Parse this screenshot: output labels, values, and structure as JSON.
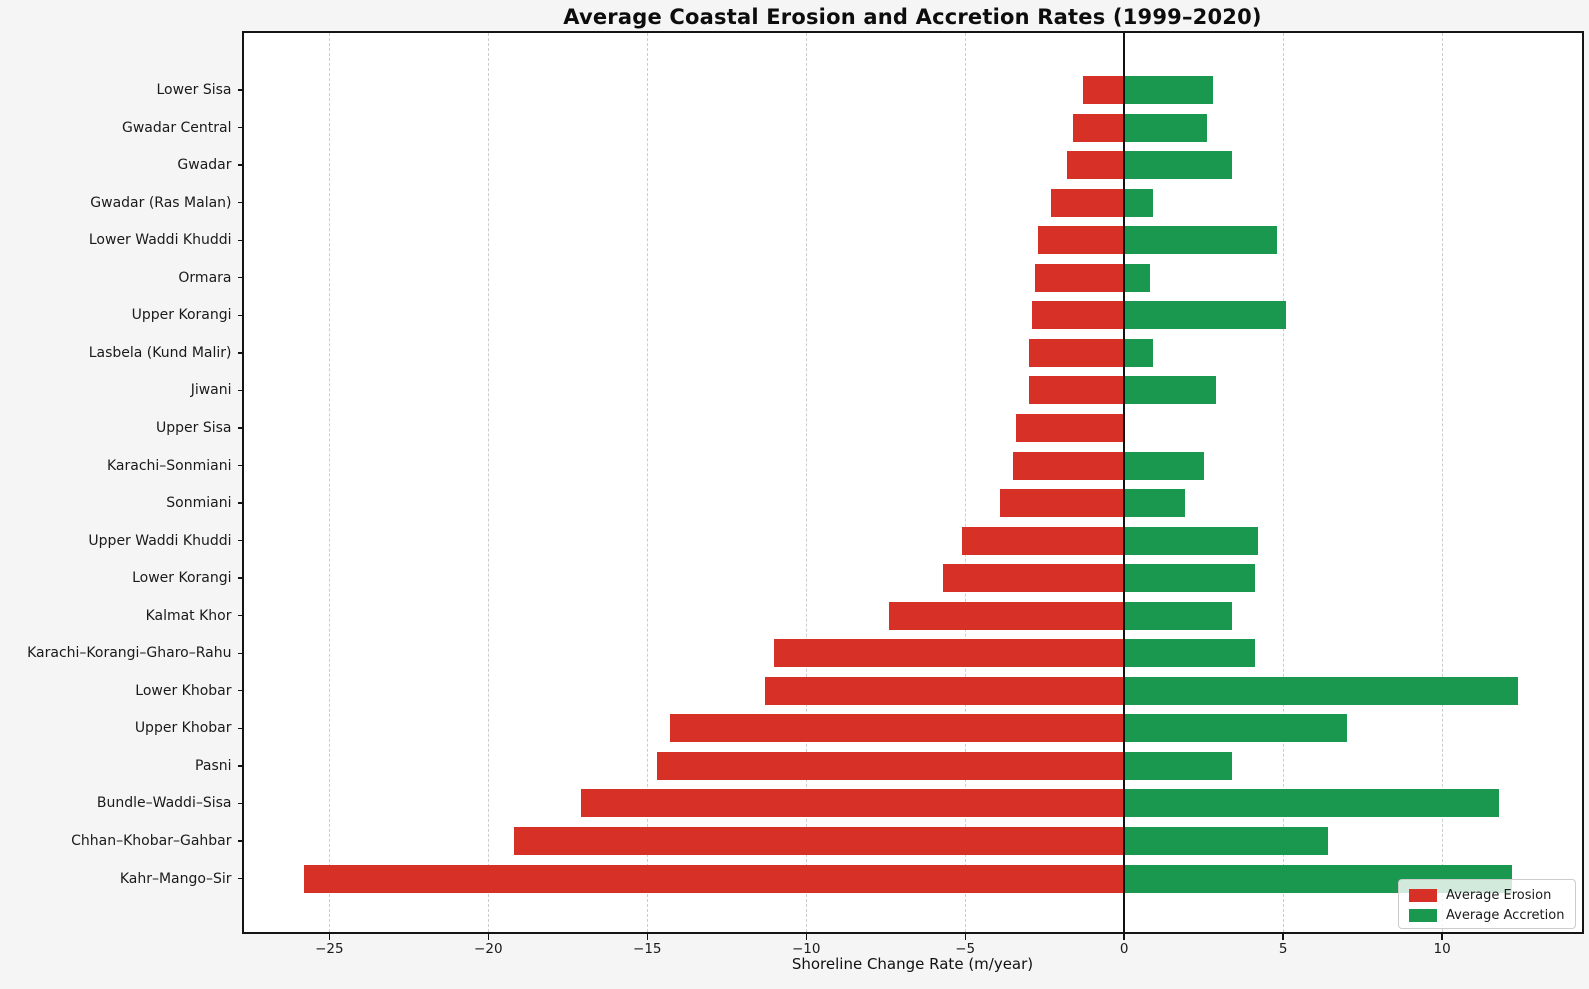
{
  "figure": {
    "background_color": "#f5f5f5",
    "plot_background_color": "#ffffff"
  },
  "chart_data": {
    "type": "bar",
    "orientation": "horizontal",
    "title": "Average Coastal Erosion and Accretion Rates (1999–2020)",
    "xlabel": "Shoreline Change Rate (m/year)",
    "ylabel": "",
    "xlim": [
      -27.7,
      14.4
    ],
    "xticks": [
      -25,
      -20,
      -15,
      -10,
      -5,
      0,
      5,
      10
    ],
    "grid": "vertical-dashed",
    "zero_line": true,
    "legend_position": "lower right",
    "categories": [
      "Lower Sisa",
      "Gwadar Central",
      "Gwadar",
      "Gwadar (Ras Malan)",
      "Lower Waddi Khuddi",
      "Ormara",
      "Upper Korangi",
      "Lasbela (Kund Malir)",
      "Jiwani",
      "Upper Sisa",
      "Karachi–Sonmiani",
      "Sonmiani",
      "Upper Waddi Khuddi",
      "Lower Korangi",
      "Kalmat Khor",
      "Karachi–Korangi–Gharo–Rahu",
      "Lower Khobar",
      "Upper Khobar",
      "Pasni",
      "Bundle–Waddi–Sisa",
      "Chhan–Khobar–Gahbar",
      "Kahr–Mango–Sir"
    ],
    "series": [
      {
        "name": "Average Erosion",
        "color": "#d73027",
        "values": [
          -1.3,
          -1.6,
          -1.8,
          -2.3,
          -2.7,
          -2.8,
          -2.9,
          -3.0,
          -3.0,
          -3.4,
          -3.5,
          -3.9,
          -5.1,
          -5.7,
          -7.4,
          -11.0,
          -11.3,
          -14.3,
          -14.7,
          -17.1,
          -19.2,
          -25.8
        ]
      },
      {
        "name": "Average Accretion",
        "color": "#1a9850",
        "values": [
          2.8,
          2.6,
          3.4,
          0.9,
          4.8,
          0.8,
          5.1,
          0.9,
          2.9,
          0.0,
          2.5,
          1.9,
          4.2,
          4.1,
          3.4,
          4.1,
          12.4,
          7.0,
          3.4,
          11.8,
          6.4,
          12.2
        ]
      }
    ]
  }
}
